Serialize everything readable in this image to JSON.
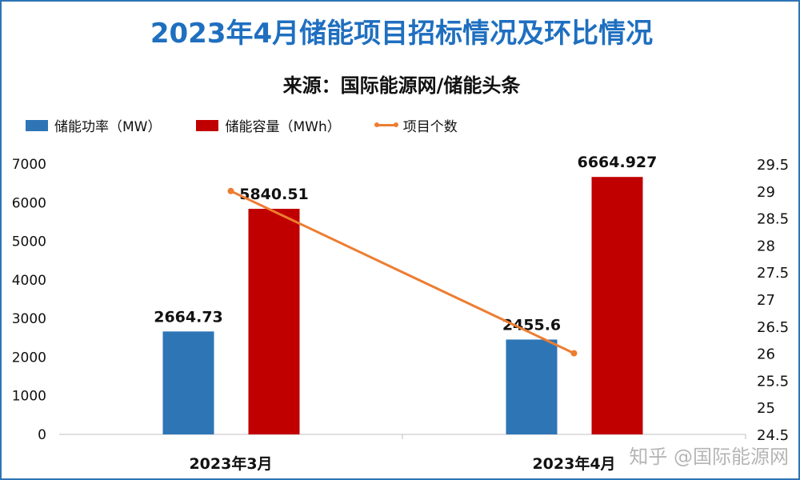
{
  "chart_data": {
    "type": "bar+line",
    "title": "2023年4月储能项目招标情况及环比情况",
    "subtitle": "来源：国际能源网/储能头条",
    "categories": [
      "2023年3月",
      "2023年4月"
    ],
    "series": [
      {
        "name": "储能功率（MW）",
        "type": "bar",
        "axis": "left",
        "color": "#2e75b6",
        "values": [
          2664.73,
          2455.6
        ],
        "labels": [
          "2664.73",
          "2455.6"
        ]
      },
      {
        "name": "储能容量（MWh）",
        "type": "bar",
        "axis": "left",
        "color": "#c00000",
        "values": [
          5840.51,
          6664.927
        ],
        "labels": [
          "5840.51",
          "6664.927"
        ]
      },
      {
        "name": "项目个数",
        "type": "line",
        "axis": "right",
        "color": "#ed7d31",
        "values": [
          29,
          26
        ]
      }
    ],
    "left_axis": {
      "ylim": [
        0,
        7000
      ],
      "ticks": [
        "0",
        "1000",
        "2000",
        "3000",
        "4000",
        "5000",
        "6000",
        "7000"
      ]
    },
    "right_axis": {
      "ylim": [
        24.5,
        29.5
      ],
      "ticks": [
        "24.5",
        "25",
        "25.5",
        "26",
        "26.5",
        "27",
        "27.5",
        "28",
        "28.5",
        "29",
        "29.5"
      ]
    },
    "legend_position": "top-left",
    "grid": false
  },
  "watermark": "知乎 @国际能源网"
}
